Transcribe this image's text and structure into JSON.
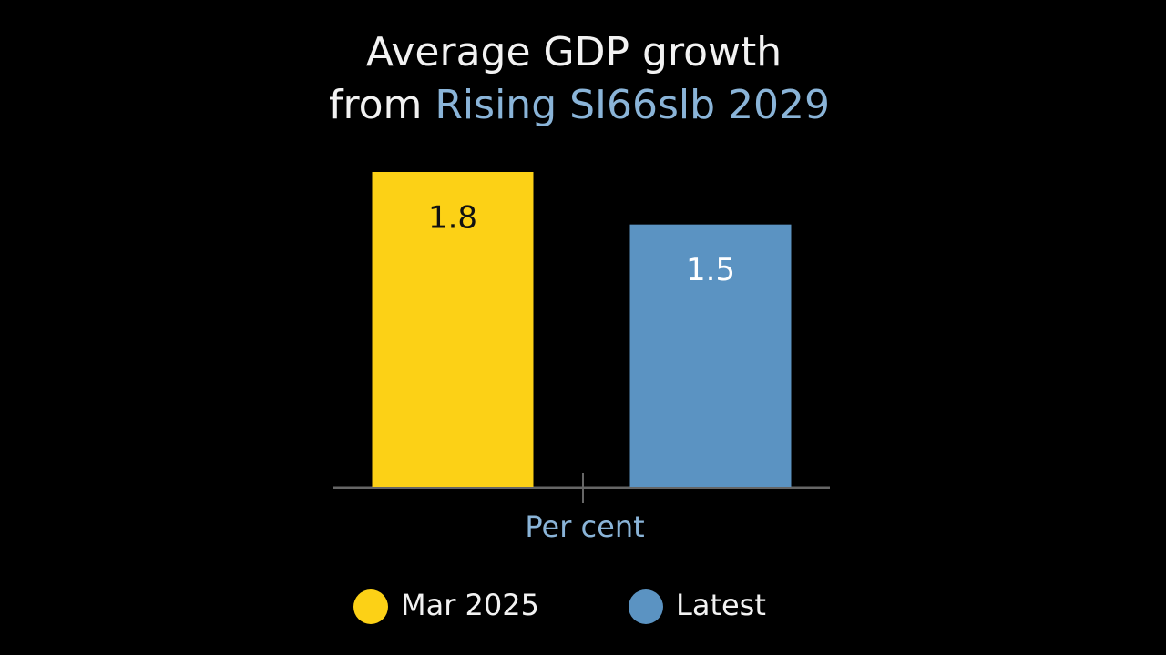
{
  "chart_data": {
    "type": "bar",
    "title": {
      "line1": "Average GDP growth",
      "line2_lead": "from",
      "line2_highlight": "Rising SI66slb 2029"
    },
    "y_axis_label": "Per cent",
    "series": [
      {
        "name": "Mar 2025",
        "color": "#fcd116",
        "label_color": "#111111",
        "values": [
          1.8
        ]
      },
      {
        "name": "Latest",
        "color": "#5b93c2",
        "label_color": "#ffffff",
        "values": [
          1.5
        ]
      }
    ],
    "ylim": [
      0,
      1.8
    ],
    "grid": false,
    "legend": "bottom"
  }
}
